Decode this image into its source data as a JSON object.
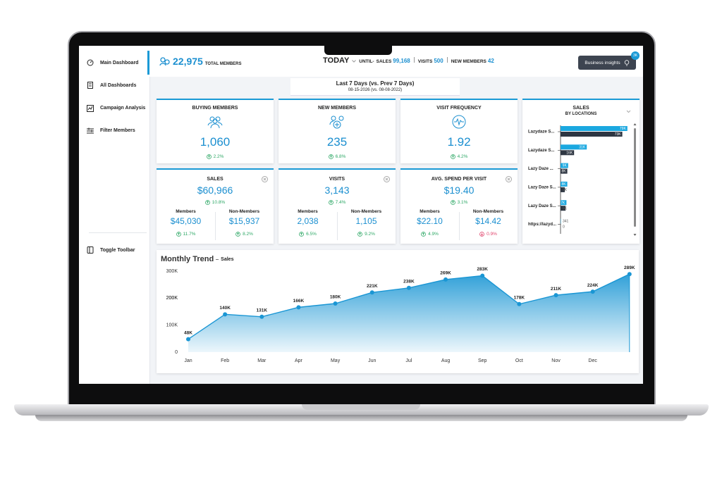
{
  "sidebar": {
    "items": [
      "Main Dashboard",
      "All Dashboards",
      "Campaign Analysis",
      "Filter Members"
    ],
    "toggle": "Toggle Toolbar"
  },
  "header": {
    "total_members": "22,975",
    "total_members_label": "TOTAL MEMBERS",
    "period": "TODAY",
    "until": "UNTIL-",
    "sales_label": "SALES",
    "sales": "99,168",
    "visits_label": "VISITS",
    "visits": "500",
    "new_members_label": "NEW MEMBERS",
    "new_members": "42",
    "insights": "Business insights",
    "insights_badge": "3K"
  },
  "date_range": {
    "label": "Last 7 Days (vs. Prev 7 Days)",
    "dates": "08-15-2026 (vs. 08-08-2022)"
  },
  "kpi_cards": [
    {
      "title": "BUYING MEMBERS",
      "value": "1,060",
      "change": "2.2%",
      "direction": "up"
    },
    {
      "title": "NEW MEMBERS",
      "value": "235",
      "change": "6.8%",
      "direction": "up"
    },
    {
      "title": "VISIT FREQUENCY",
      "value": "1.92",
      "change": "4.2%",
      "direction": "up"
    }
  ],
  "split_cards": [
    {
      "title": "SALES",
      "value": "$60,966",
      "change": "10.8%",
      "direction": "up",
      "members": {
        "label": "Members",
        "value": "$45,030",
        "change": "11.7%",
        "direction": "up"
      },
      "non_members": {
        "label": "Non-Members",
        "value": "$15,937",
        "change": "8.2%",
        "direction": "up"
      }
    },
    {
      "title": "VISITS",
      "value": "3,143",
      "change": "7.4%",
      "direction": "up",
      "members": {
        "label": "Members",
        "value": "2,038",
        "change": "6.5%",
        "direction": "up"
      },
      "non_members": {
        "label": "Non-Members",
        "value": "1,105",
        "change": "9.2%",
        "direction": "up"
      }
    },
    {
      "title": "AVG. SPEND PER VISIT",
      "value": "$19.40",
      "change": "3.1%",
      "direction": "up",
      "members": {
        "label": "Members",
        "value": "$22.10",
        "change": "4.9%",
        "direction": "up"
      },
      "non_members": {
        "label": "Non-Members",
        "value": "$14.42",
        "change": "0.9%",
        "direction": "down"
      }
    }
  ],
  "chart_data": [
    {
      "type": "line",
      "title": "Monthly Trend",
      "subtitle": "Sales",
      "categories": [
        "Jan",
        "Feb",
        "Mar",
        "Apr",
        "May",
        "Jun",
        "Jul",
        "Aug",
        "Sep",
        "Oct",
        "Nov",
        "Dec",
        null
      ],
      "values": [
        48000,
        140000,
        131000,
        166000,
        180000,
        221000,
        238000,
        269000,
        283000,
        178000,
        211000,
        224000,
        289000
      ],
      "value_labels": [
        "48K",
        "140K",
        "131K",
        "166K",
        "180K",
        "221K",
        "238K",
        "269K",
        "283K",
        "178K",
        "211K",
        "224K",
        "289K"
      ],
      "color": "#1a96d4",
      "area": true,
      "ylim": [
        0,
        300000
      ],
      "yticks": [
        0,
        {
          "value": 100000,
          "label": "100K"
        },
        {
          "value": 200000,
          "label": "200K"
        },
        {
          "value": 200000,
          "label": "200K"
        },
        {
          "value": 300000,
          "label": "300K"
        }
      ]
    },
    {
      "type": "bar",
      "orientation": "horizontal",
      "title": "SALES",
      "subtitle": "BY LOCATIONS",
      "categories": [
        "Lazydaze S...",
        "Lazydaze S...",
        "Lazy Daze ...",
        "Lazy Daze S...",
        "Lazy Daze S...",
        "https://lazyd..."
      ],
      "series": [
        {
          "color": "#1ba8e0",
          "values": [
            79000,
            31000,
            9000,
            8000,
            7000,
            341
          ],
          "value_labels": [
            "79K",
            "31K",
            "9K",
            "8K",
            "7K",
            "341"
          ]
        },
        {
          "color": "#2e3642",
          "values": [
            73000,
            16000,
            8000,
            5000,
            6000,
            0
          ],
          "value_labels": [
            "73K",
            "16K",
            "8K",
            "5K",
            "6K",
            "0"
          ]
        }
      ],
      "xlim": [
        0,
        80000
      ]
    }
  ]
}
